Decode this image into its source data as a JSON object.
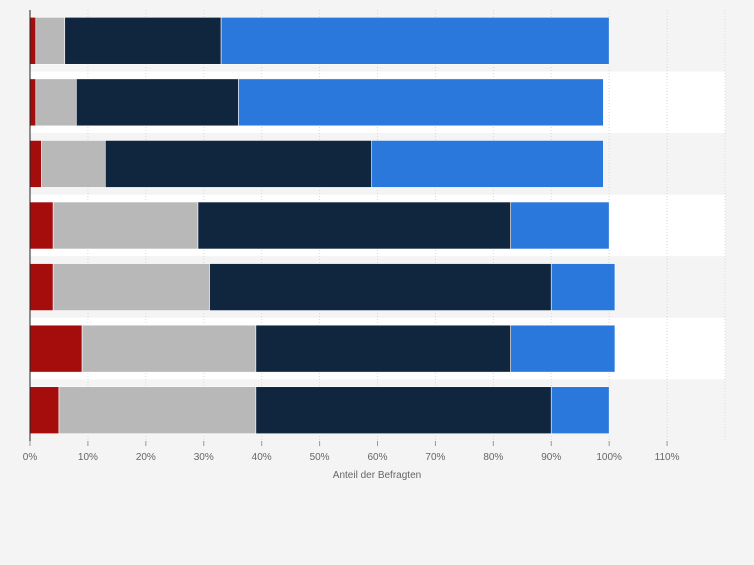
{
  "chart_data": {
    "type": "bar",
    "orientation": "horizontal",
    "stacked": true,
    "title": "",
    "xlabel": "Anteil der Befragten",
    "ylabel": "",
    "xlim": [
      0,
      120
    ],
    "x_ticks": [
      0,
      10,
      20,
      30,
      40,
      50,
      60,
      70,
      80,
      90,
      100,
      110
    ],
    "x_tick_labels": [
      "0%",
      "10%",
      "20%",
      "30%",
      "40%",
      "50%",
      "60%",
      "70%",
      "80%",
      "90%",
      "100%",
      "110%"
    ],
    "grid": true,
    "legend": "none",
    "colors": [
      "#a50d0d",
      "#b8b8b8",
      "#10253e",
      "#2a78dc"
    ],
    "bars": [
      [
        1,
        5,
        27,
        67
      ],
      [
        1,
        7,
        28,
        63
      ],
      [
        2,
        11,
        46,
        40
      ],
      [
        4,
        25,
        54,
        17
      ],
      [
        4,
        27,
        59,
        11
      ],
      [
        9,
        30,
        44,
        18
      ],
      [
        5,
        34,
        51,
        10
      ]
    ]
  }
}
